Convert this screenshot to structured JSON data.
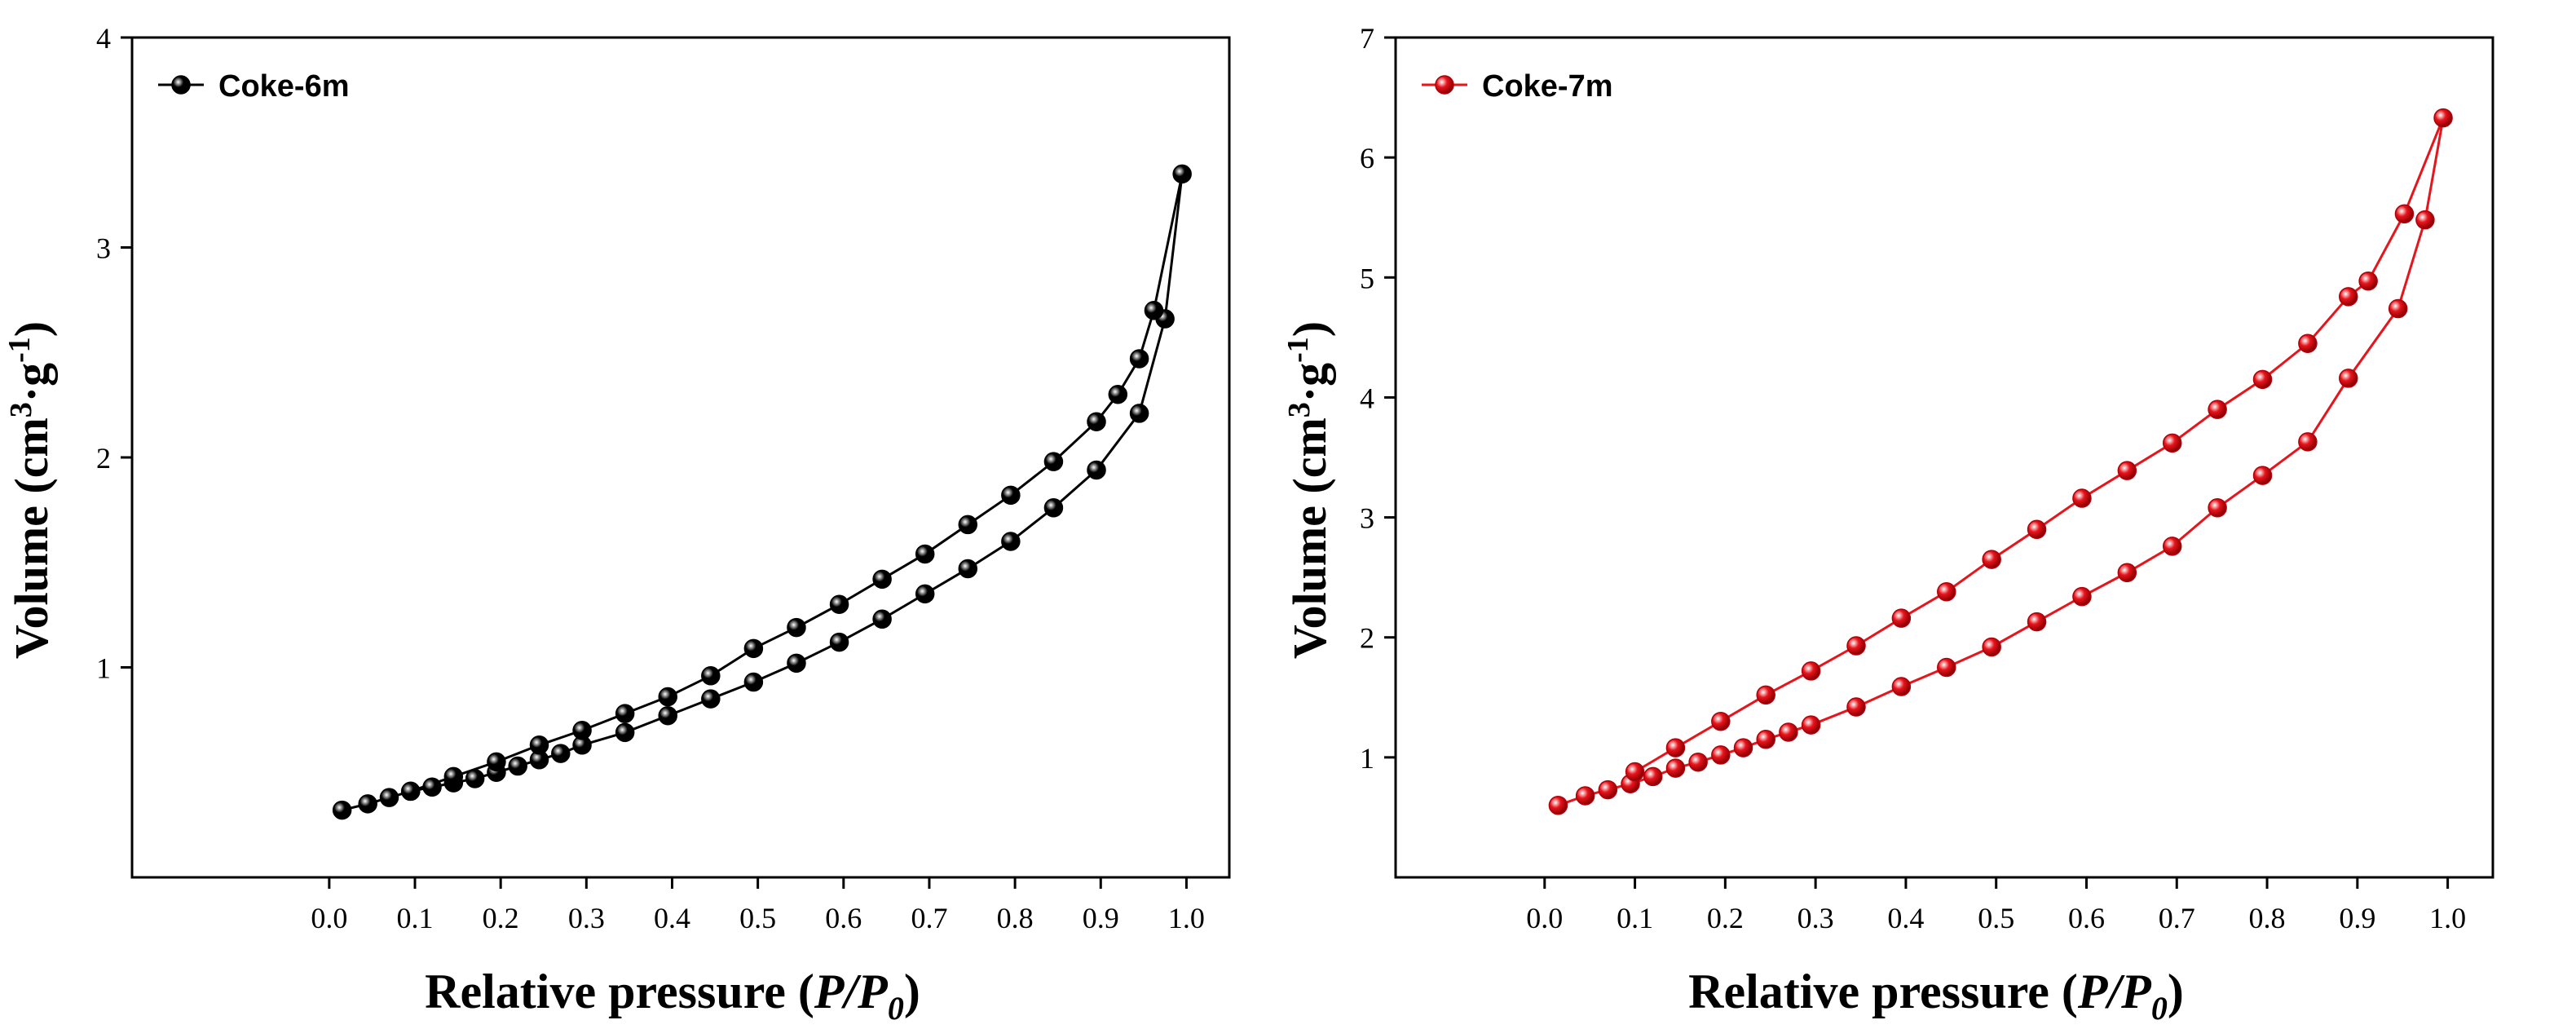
{
  "chart_data": [
    {
      "type": "line",
      "color": "#000000",
      "legend_position": "top-left",
      "grid": false,
      "xlim": [
        -0.23,
        1.05
      ],
      "ylim": [
        0,
        4
      ],
      "xticks": [
        "0.0",
        "0.1",
        "0.2",
        "0.3",
        "0.4",
        "0.5",
        "0.6",
        "0.7",
        "0.8",
        "0.9",
        "1.0"
      ],
      "yticks": [
        "1",
        "2",
        "3",
        "4"
      ],
      "xlabel": {
        "main": "Relative pressure (",
        "italic": "P/P",
        "sub": "0",
        "close": ")"
      },
      "ylabel": {
        "main": "Volume (cm",
        "sup3": "3",
        "mid": "·g",
        "sup": "-1",
        "close": ")"
      },
      "series": [
        {
          "name": "Coke-6m",
          "points": [
            [
              0.015,
              0.32
            ],
            [
              0.045,
              0.35
            ],
            [
              0.07,
              0.38
            ],
            [
              0.095,
              0.41
            ],
            [
              0.12,
              0.43
            ],
            [
              0.145,
              0.45
            ],
            [
              0.17,
              0.47
            ],
            [
              0.195,
              0.5
            ],
            [
              0.22,
              0.53
            ],
            [
              0.245,
              0.56
            ],
            [
              0.27,
              0.59
            ],
            [
              0.295,
              0.63
            ],
            [
              0.345,
              0.69
            ],
            [
              0.395,
              0.77
            ],
            [
              0.445,
              0.85
            ],
            [
              0.495,
              0.93
            ],
            [
              0.545,
              1.02
            ],
            [
              0.595,
              1.12
            ],
            [
              0.645,
              1.23
            ],
            [
              0.695,
              1.35
            ],
            [
              0.745,
              1.47
            ],
            [
              0.795,
              1.6
            ],
            [
              0.845,
              1.76
            ],
            [
              0.895,
              1.94
            ],
            [
              0.945,
              2.21
            ],
            [
              0.975,
              2.66
            ],
            [
              0.995,
              3.35
            ],
            [
              0.962,
              2.7
            ],
            [
              0.945,
              2.47
            ],
            [
              0.92,
              2.3
            ],
            [
              0.895,
              2.17
            ],
            [
              0.845,
              1.98
            ],
            [
              0.795,
              1.82
            ],
            [
              0.745,
              1.68
            ],
            [
              0.695,
              1.54
            ],
            [
              0.645,
              1.42
            ],
            [
              0.595,
              1.3
            ],
            [
              0.545,
              1.19
            ],
            [
              0.495,
              1.09
            ],
            [
              0.445,
              0.96
            ],
            [
              0.395,
              0.86
            ],
            [
              0.345,
              0.78
            ],
            [
              0.295,
              0.7
            ],
            [
              0.245,
              0.63
            ],
            [
              0.195,
              0.55
            ],
            [
              0.145,
              0.48
            ],
            [
              0.095,
              0.41
            ]
          ]
        }
      ]
    },
    {
      "type": "line",
      "color": "#e8141b",
      "legend_position": "top-left",
      "grid": false,
      "xlim": [
        -0.165,
        1.05
      ],
      "ylim": [
        0,
        7
      ],
      "xticks": [
        "0.0",
        "0.1",
        "0.2",
        "0.3",
        "0.4",
        "0.5",
        "0.6",
        "0.7",
        "0.8",
        "0.9",
        "1.0"
      ],
      "yticks": [
        "1",
        "2",
        "3",
        "4",
        "5",
        "6",
        "7"
      ],
      "xlabel": {
        "main": "Relative pressure (",
        "italic": "P/P",
        "sub": "0",
        "close": ")"
      },
      "ylabel": {
        "main": "Volume (cm",
        "sup3": "3",
        "mid": "·g",
        "sup": "-1",
        "close": ")"
      },
      "series": [
        {
          "name": "Coke-7m",
          "points": [
            [
              0.015,
              0.6
            ],
            [
              0.045,
              0.68
            ],
            [
              0.07,
              0.73
            ],
            [
              0.095,
              0.78
            ],
            [
              0.12,
              0.84
            ],
            [
              0.145,
              0.91
            ],
            [
              0.17,
              0.96
            ],
            [
              0.195,
              1.02
            ],
            [
              0.22,
              1.08
            ],
            [
              0.245,
              1.15
            ],
            [
              0.27,
              1.21
            ],
            [
              0.295,
              1.27
            ],
            [
              0.345,
              1.42
            ],
            [
              0.395,
              1.59
            ],
            [
              0.445,
              1.75
            ],
            [
              0.495,
              1.92
            ],
            [
              0.545,
              2.13
            ],
            [
              0.595,
              2.34
            ],
            [
              0.645,
              2.54
            ],
            [
              0.695,
              2.76
            ],
            [
              0.745,
              3.08
            ],
            [
              0.795,
              3.35
            ],
            [
              0.845,
              3.63
            ],
            [
              0.89,
              4.16
            ],
            [
              0.945,
              4.74
            ],
            [
              0.975,
              5.48
            ],
            [
              0.995,
              6.33
            ],
            [
              0.952,
              5.53
            ],
            [
              0.912,
              4.97
            ],
            [
              0.89,
              4.84
            ],
            [
              0.845,
              4.45
            ],
            [
              0.795,
              4.15
            ],
            [
              0.745,
              3.9
            ],
            [
              0.695,
              3.62
            ],
            [
              0.645,
              3.39
            ],
            [
              0.595,
              3.16
            ],
            [
              0.545,
              2.9
            ],
            [
              0.495,
              2.65
            ],
            [
              0.445,
              2.38
            ],
            [
              0.395,
              2.16
            ],
            [
              0.345,
              1.93
            ],
            [
              0.295,
              1.72
            ],
            [
              0.245,
              1.52
            ],
            [
              0.195,
              1.3
            ],
            [
              0.145,
              1.08
            ],
            [
              0.1,
              0.88
            ]
          ]
        }
      ]
    }
  ]
}
